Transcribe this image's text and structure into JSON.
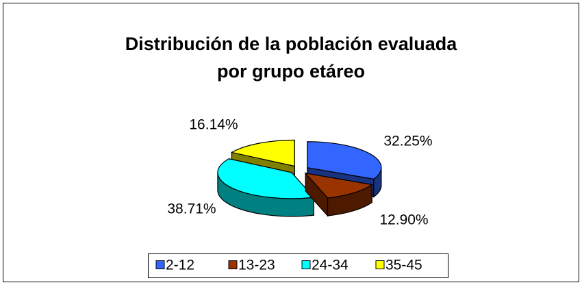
{
  "chart_data": {
    "type": "pie",
    "title": [
      "Distribución de la población evaluada",
      "por grupo etáreo"
    ],
    "categories": [
      "2-12",
      "13-23",
      "24-34",
      "35-45"
    ],
    "values": [
      32.25,
      12.9,
      38.71,
      16.14
    ],
    "value_labels": [
      "32.25%",
      "12.90%",
      "38.71%",
      "16.14%"
    ],
    "colors": [
      "#3366ff",
      "#993300",
      "#00ffff",
      "#ffff00"
    ],
    "legend": "bottom"
  }
}
